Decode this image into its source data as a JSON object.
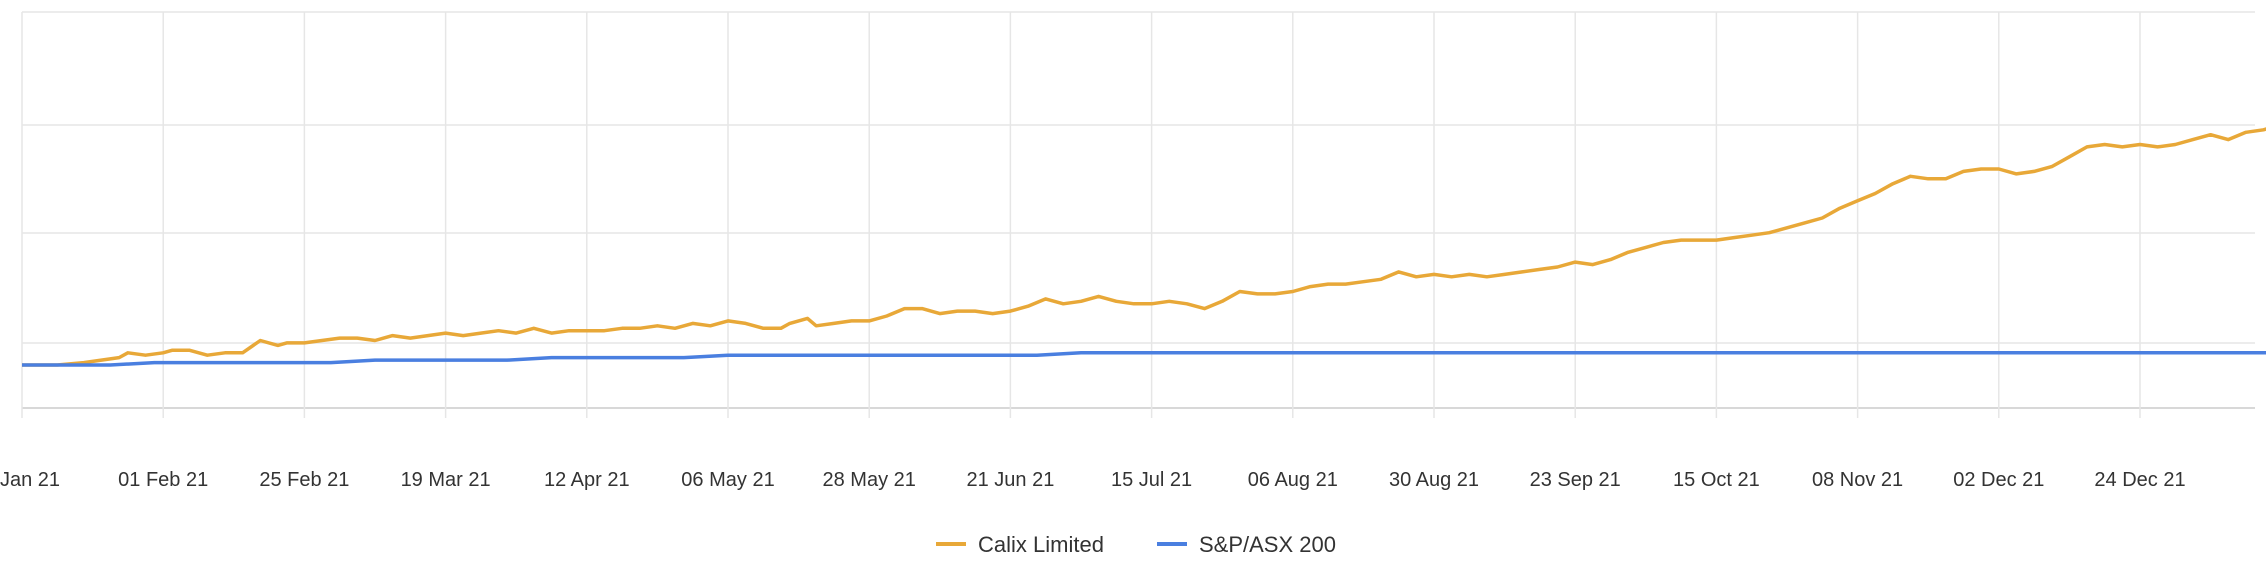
{
  "chart_data": {
    "type": "line",
    "title": "",
    "xlabel": "",
    "ylabel": "",
    "x_ticks": [
      "Jan 21",
      "01 Feb 21",
      "25 Feb 21",
      "19 Mar 21",
      "12 Apr 21",
      "06 May 21",
      "28 May 21",
      "21 Jun 21",
      "15 Jul 21",
      "06 Aug 21",
      "30 Aug 21",
      "23 Sep 21",
      "15 Oct 21",
      "08 Nov 21",
      "02 Dec 21",
      "24 Dec 21"
    ],
    "y_axis_labels_visible": false,
    "grid": true,
    "legend_position": "bottom-center",
    "series": [
      {
        "name": "Calix Limited",
        "color": "#E8A838",
        "points": [
          [
            0,
            0
          ],
          [
            0.4,
            0
          ],
          [
            0.7,
            0.1
          ],
          [
            0.9,
            0.2
          ],
          [
            1.1,
            0.3
          ],
          [
            1.2,
            0.5
          ],
          [
            1.4,
            0.4
          ],
          [
            1.6,
            0.5
          ],
          [
            1.7,
            0.6
          ],
          [
            1.9,
            0.6
          ],
          [
            2.1,
            0.4
          ],
          [
            2.3,
            0.5
          ],
          [
            2.5,
            0.5
          ],
          [
            2.7,
            1.0
          ],
          [
            2.9,
            0.8
          ],
          [
            3.0,
            0.9
          ],
          [
            3.2,
            0.9
          ],
          [
            3.4,
            1.0
          ],
          [
            3.6,
            1.1
          ],
          [
            3.8,
            1.1
          ],
          [
            4.0,
            1.0
          ],
          [
            4.2,
            1.2
          ],
          [
            4.4,
            1.1
          ],
          [
            4.6,
            1.2
          ],
          [
            4.8,
            1.3
          ],
          [
            5.0,
            1.2
          ],
          [
            5.2,
            1.3
          ],
          [
            5.4,
            1.4
          ],
          [
            5.6,
            1.3
          ],
          [
            5.8,
            1.5
          ],
          [
            6.0,
            1.3
          ],
          [
            6.2,
            1.4
          ],
          [
            6.4,
            1.4
          ],
          [
            6.6,
            1.4
          ],
          [
            6.8,
            1.5
          ],
          [
            7.0,
            1.5
          ],
          [
            7.2,
            1.6
          ],
          [
            7.4,
            1.5
          ],
          [
            7.6,
            1.7
          ],
          [
            7.8,
            1.6
          ],
          [
            8.0,
            1.8
          ],
          [
            8.2,
            1.7
          ],
          [
            8.4,
            1.5
          ],
          [
            8.6,
            1.5
          ],
          [
            8.7,
            1.7
          ],
          [
            8.9,
            1.9
          ],
          [
            9.0,
            1.6
          ],
          [
            9.2,
            1.7
          ],
          [
            9.4,
            1.8
          ],
          [
            9.6,
            1.8
          ],
          [
            9.8,
            2.0
          ],
          [
            10.0,
            2.3
          ],
          [
            10.2,
            2.3
          ],
          [
            10.4,
            2.1
          ],
          [
            10.6,
            2.2
          ],
          [
            10.8,
            2.2
          ],
          [
            11.0,
            2.1
          ],
          [
            11.2,
            2.2
          ],
          [
            11.4,
            2.4
          ],
          [
            11.6,
            2.7
          ],
          [
            11.8,
            2.5
          ],
          [
            12.0,
            2.6
          ],
          [
            12.2,
            2.8
          ],
          [
            12.4,
            2.6
          ],
          [
            12.6,
            2.5
          ],
          [
            12.8,
            2.5
          ],
          [
            13.0,
            2.6
          ],
          [
            13.2,
            2.5
          ],
          [
            13.4,
            2.3
          ],
          [
            13.6,
            2.6
          ],
          [
            13.8,
            3.0
          ],
          [
            14.0,
            2.9
          ],
          [
            14.2,
            2.9
          ],
          [
            14.4,
            3.0
          ],
          [
            14.6,
            3.2
          ],
          [
            14.8,
            3.3
          ],
          [
            15.0,
            3.3
          ],
          [
            15.2,
            3.4
          ],
          [
            15.4,
            3.5
          ],
          [
            15.6,
            3.8
          ],
          [
            15.8,
            3.6
          ],
          [
            16.0,
            3.7
          ],
          [
            16.2,
            3.6
          ],
          [
            16.4,
            3.7
          ],
          [
            16.6,
            3.6
          ],
          [
            16.8,
            3.7
          ],
          [
            17.0,
            3.8
          ],
          [
            17.2,
            3.9
          ],
          [
            17.4,
            4.0
          ],
          [
            17.6,
            4.2
          ],
          [
            17.8,
            4.1
          ],
          [
            18.0,
            4.3
          ],
          [
            18.2,
            4.6
          ],
          [
            18.4,
            4.8
          ],
          [
            18.6,
            5.0
          ],
          [
            18.8,
            5.1
          ],
          [
            19.0,
            5.1
          ],
          [
            19.2,
            5.1
          ],
          [
            19.4,
            5.2
          ],
          [
            19.6,
            5.3
          ],
          [
            19.8,
            5.4
          ],
          [
            20.0,
            5.6
          ],
          [
            20.2,
            5.8
          ],
          [
            20.4,
            6.0
          ],
          [
            20.6,
            6.4
          ],
          [
            20.8,
            6.7
          ],
          [
            21.0,
            7.0
          ],
          [
            21.2,
            7.4
          ],
          [
            21.4,
            7.7
          ],
          [
            21.6,
            7.6
          ],
          [
            21.8,
            7.6
          ],
          [
            22.0,
            7.9
          ],
          [
            22.2,
            8.0
          ],
          [
            22.4,
            8.0
          ],
          [
            22.6,
            7.8
          ],
          [
            22.8,
            7.9
          ],
          [
            23.0,
            8.1
          ],
          [
            23.2,
            8.5
          ],
          [
            23.4,
            8.9
          ],
          [
            23.6,
            9.0
          ],
          [
            23.8,
            8.9
          ],
          [
            24.0,
            9.0
          ],
          [
            24.2,
            8.9
          ],
          [
            24.4,
            9.0
          ],
          [
            24.6,
            9.2
          ],
          [
            24.8,
            9.4
          ],
          [
            25.0,
            9.2
          ],
          [
            25.2,
            9.5
          ],
          [
            25.4,
            9.6
          ],
          [
            25.6,
            9.8
          ],
          [
            25.8,
            9.4
          ],
          [
            26.0,
            9.3
          ]
        ]
      },
      {
        "name": "S&P/ASX 200",
        "color": "#4A7FE0",
        "points": [
          [
            0,
            0
          ],
          [
            0.5,
            0
          ],
          [
            1.0,
            0
          ],
          [
            1.5,
            0.1
          ],
          [
            2.0,
            0.1
          ],
          [
            2.5,
            0.1
          ],
          [
            3.0,
            0.1
          ],
          [
            3.5,
            0.1
          ],
          [
            4.0,
            0.2
          ],
          [
            4.5,
            0.2
          ],
          [
            5.0,
            0.2
          ],
          [
            5.5,
            0.2
          ],
          [
            6.0,
            0.3
          ],
          [
            6.5,
            0.3
          ],
          [
            7.0,
            0.3
          ],
          [
            7.5,
            0.3
          ],
          [
            8.0,
            0.4
          ],
          [
            8.5,
            0.4
          ],
          [
            9.0,
            0.4
          ],
          [
            9.5,
            0.4
          ],
          [
            10.0,
            0.4
          ],
          [
            10.5,
            0.4
          ],
          [
            11.0,
            0.4
          ],
          [
            11.5,
            0.4
          ],
          [
            12.0,
            0.5
          ],
          [
            12.5,
            0.5
          ],
          [
            13.0,
            0.5
          ],
          [
            13.5,
            0.5
          ],
          [
            14.0,
            0.5
          ],
          [
            14.5,
            0.5
          ],
          [
            15.0,
            0.5
          ],
          [
            15.5,
            0.5
          ],
          [
            16.0,
            0.5
          ],
          [
            16.5,
            0.5
          ],
          [
            17.0,
            0.5
          ],
          [
            17.5,
            0.5
          ],
          [
            18.0,
            0.5
          ],
          [
            18.5,
            0.5
          ],
          [
            19.0,
            0.5
          ],
          [
            19.5,
            0.5
          ],
          [
            20.0,
            0.5
          ],
          [
            20.5,
            0.5
          ],
          [
            21.0,
            0.5
          ],
          [
            21.5,
            0.5
          ],
          [
            22.0,
            0.5
          ],
          [
            22.5,
            0.5
          ],
          [
            23.0,
            0.5
          ],
          [
            23.5,
            0.5
          ],
          [
            24.0,
            0.5
          ],
          [
            24.5,
            0.5
          ],
          [
            25.0,
            0.5
          ],
          [
            25.5,
            0.5
          ],
          [
            26.0,
            0.5
          ]
        ]
      }
    ]
  }
}
